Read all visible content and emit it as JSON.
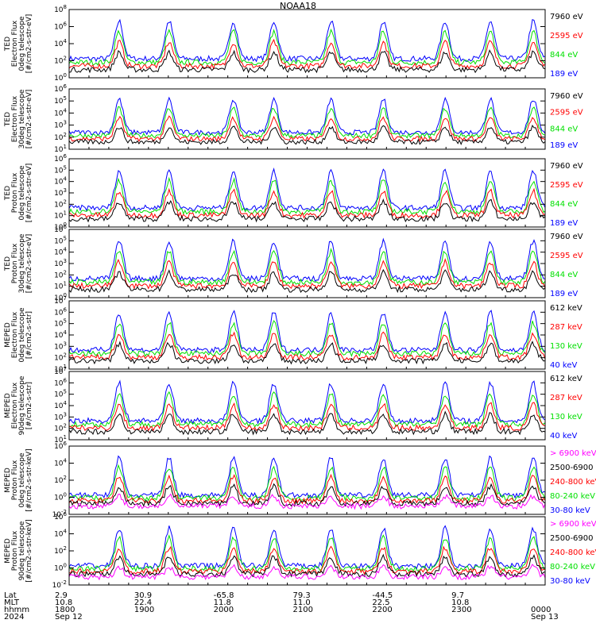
{
  "title": "NOAA18",
  "colors": {
    "black": "#000000",
    "red": "#ff0000",
    "green": "#00e000",
    "blue": "#0000ff",
    "magenta": "#ff00ff"
  },
  "chart_data": [
    {
      "type": "line",
      "ylabel": [
        "TED",
        "Electron Flux",
        "0deg telescope",
        "[#/cm2-s-str-eV]"
      ],
      "yscale": "log",
      "ylim_exp": [
        0,
        8
      ],
      "tick_exps": [
        0,
        2,
        4,
        6,
        8
      ],
      "legend": [
        {
          "label": "7960 eV",
          "color": "black"
        },
        {
          "label": "2595 eV",
          "color": "red"
        },
        {
          "label": "844 eV",
          "color": "green"
        },
        {
          "label": "189 eV",
          "color": "blue"
        }
      ]
    },
    {
      "type": "line",
      "ylabel": [
        "TED",
        "Electron Flux",
        "30deg telescope",
        "[#/cm2-s-str-eV]"
      ],
      "yscale": "log",
      "ylim_exp": [
        1,
        6
      ],
      "tick_exps": [
        1,
        2,
        3,
        4,
        5,
        6
      ],
      "legend": [
        {
          "label": "7960 eV",
          "color": "black"
        },
        {
          "label": "2595 eV",
          "color": "red"
        },
        {
          "label": "844 eV",
          "color": "green"
        },
        {
          "label": "189 eV",
          "color": "blue"
        }
      ]
    },
    {
      "type": "line",
      "ylabel": [
        "TED",
        "Proton Flux",
        "0deg telescope",
        "[#/cm2-s-str-eV]"
      ],
      "yscale": "log",
      "ylim_exp": [
        0,
        6
      ],
      "tick_exps": [
        0,
        1,
        2,
        3,
        4,
        5,
        6
      ],
      "legend": [
        {
          "label": "7960 eV",
          "color": "black"
        },
        {
          "label": "2595 eV",
          "color": "red"
        },
        {
          "label": "844 eV",
          "color": "green"
        },
        {
          "label": "189 eV",
          "color": "blue"
        }
      ]
    },
    {
      "type": "line",
      "ylabel": [
        "TED",
        "Proton Flux",
        "30deg telescope",
        "[#/cm2-s-str-eV]"
      ],
      "yscale": "log",
      "ylim_exp": [
        0,
        6
      ],
      "tick_exps": [
        0,
        1,
        2,
        3,
        4,
        5,
        6
      ],
      "legend": [
        {
          "label": "7960 eV",
          "color": "black"
        },
        {
          "label": "2595 eV",
          "color": "red"
        },
        {
          "label": "844 eV",
          "color": "green"
        },
        {
          "label": "189 eV",
          "color": "blue"
        }
      ]
    },
    {
      "type": "line",
      "ylabel": [
        "MEPED",
        "Electron Flux",
        "0deg telescope",
        "[#/cm2-s-str]"
      ],
      "yscale": "log",
      "ylim_exp": [
        1,
        7
      ],
      "tick_exps": [
        1,
        2,
        3,
        4,
        5,
        6,
        7
      ],
      "legend": [
        {
          "label": "612 keV",
          "color": "black"
        },
        {
          "label": "287 keV",
          "color": "red"
        },
        {
          "label": "130 keV",
          "color": "green"
        },
        {
          "label": "40 keV",
          "color": "blue"
        }
      ]
    },
    {
      "type": "line",
      "ylabel": [
        "MEPED",
        "Electron Flux",
        "90deg telescope",
        "[#/cm2-s-str]"
      ],
      "yscale": "log",
      "ylim_exp": [
        1,
        7
      ],
      "tick_exps": [
        1,
        2,
        3,
        4,
        5,
        6,
        7
      ],
      "legend": [
        {
          "label": "612 keV",
          "color": "black"
        },
        {
          "label": "287 keV",
          "color": "red"
        },
        {
          "label": "130 keV",
          "color": "green"
        },
        {
          "label": "40 keV",
          "color": "blue"
        }
      ]
    },
    {
      "type": "line",
      "ylabel": [
        "MEPED",
        "Proton Flux",
        "0deg telescope",
        "[#/cm2-s-str-keV]"
      ],
      "yscale": "log",
      "ylim_exp": [
        -2,
        6
      ],
      "tick_exps": [
        -2,
        0,
        2,
        4,
        6
      ],
      "legend": [
        {
          "label": "> 6900 keV",
          "color": "magenta"
        },
        {
          "label": "2500-6900",
          "color": "black"
        },
        {
          "label": "240-800 keV",
          "color": "red"
        },
        {
          "label": "80-240 keV",
          "color": "green"
        },
        {
          "label": "30-80 keV",
          "color": "blue"
        }
      ]
    },
    {
      "type": "line",
      "ylabel": [
        "MEPED",
        "Proton Flux",
        "90deg telescope",
        "[#/cm2-s-str-keV]"
      ],
      "yscale": "log",
      "ylim_exp": [
        -2,
        6
      ],
      "tick_exps": [
        -2,
        0,
        2,
        4,
        6
      ],
      "legend": [
        {
          "label": "> 6900 keV",
          "color": "magenta"
        },
        {
          "label": "2500-6900",
          "color": "black"
        },
        {
          "label": "240-800 keV",
          "color": "red"
        },
        {
          "label": "80-240 keV",
          "color": "green"
        },
        {
          "label": "30-80 keV",
          "color": "blue"
        }
      ]
    }
  ],
  "x_axis": {
    "row_labels": [
      "Lat",
      "MLT",
      "hhmm",
      "2024"
    ],
    "columns": [
      {
        "lat": "2.9",
        "mlt": "10.8",
        "hhmm": "1800",
        "date": "Sep 12"
      },
      {
        "lat": "30.9",
        "mlt": "22.4",
        "hhmm": "1900",
        "date": ""
      },
      {
        "lat": "-65.8",
        "mlt": "11.8",
        "hhmm": "2000",
        "date": ""
      },
      {
        "lat": "79.3",
        "mlt": "11.0",
        "hhmm": "2100",
        "date": ""
      },
      {
        "lat": "-44.5",
        "mlt": "22.5",
        "hhmm": "2200",
        "date": ""
      },
      {
        "lat": "9.7",
        "mlt": "10.8",
        "hhmm": "2300",
        "date": ""
      },
      {
        "lat": "",
        "mlt": "",
        "hhmm": "0000",
        "date": "Sep 13"
      }
    ]
  }
}
